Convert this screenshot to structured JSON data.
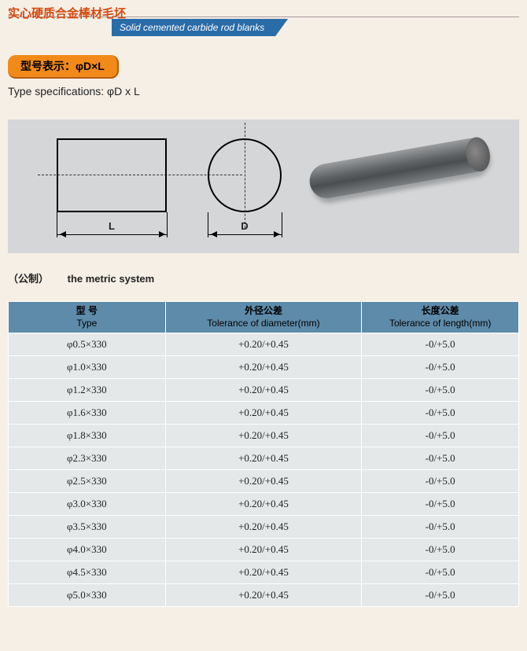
{
  "header": {
    "cn_title": "实心硬质合金棒材毛坯",
    "en_title": "Solid cemented carbide rod blanks",
    "band_bg": "#2a6ca8",
    "cn_color": "#d44a10"
  },
  "spec": {
    "badge_text": "型号表示：φD×L",
    "badge_bg": "#f28a1a",
    "en_text": "Type specifications: φD x L"
  },
  "diagram": {
    "bg": "#d4d6d8",
    "dim_L": "L",
    "dim_D": "D"
  },
  "metric": {
    "cn": "（公制）",
    "en": "the metric system"
  },
  "table": {
    "header_bg": "#5e8ba9",
    "row_bg": "#e4e8e9",
    "columns": [
      {
        "cn": "型 号",
        "en": "Type"
      },
      {
        "cn": "外径公差",
        "en": "Tolerance of diameter(mm)"
      },
      {
        "cn": "长度公差",
        "en": "Tolerance of length(mm)"
      }
    ],
    "rows": [
      [
        "φ0.5×330",
        "+0.20/+0.45",
        "-0/+5.0"
      ],
      [
        "φ1.0×330",
        "+0.20/+0.45",
        "-0/+5.0"
      ],
      [
        "φ1.2×330",
        "+0.20/+0.45",
        "-0/+5.0"
      ],
      [
        "φ1.6×330",
        "+0.20/+0.45",
        "-0/+5.0"
      ],
      [
        "φ1.8×330",
        "+0.20/+0.45",
        "-0/+5.0"
      ],
      [
        "φ2.3×330",
        "+0.20/+0.45",
        "-0/+5.0"
      ],
      [
        "φ2.5×330",
        "+0.20/+0.45",
        "-0/+5.0"
      ],
      [
        "φ3.0×330",
        "+0.20/+0.45",
        "-0/+5.0"
      ],
      [
        "φ3.5×330",
        "+0.20/+0.45",
        "-0/+5.0"
      ],
      [
        "φ4.0×330",
        "+0.20/+0.45",
        "-0/+5.0"
      ],
      [
        "φ4.5×330",
        "+0.20/+0.45",
        "-0/+5.0"
      ],
      [
        "φ5.0×330",
        "+0.20/+0.45",
        "-0/+5.0"
      ]
    ]
  }
}
